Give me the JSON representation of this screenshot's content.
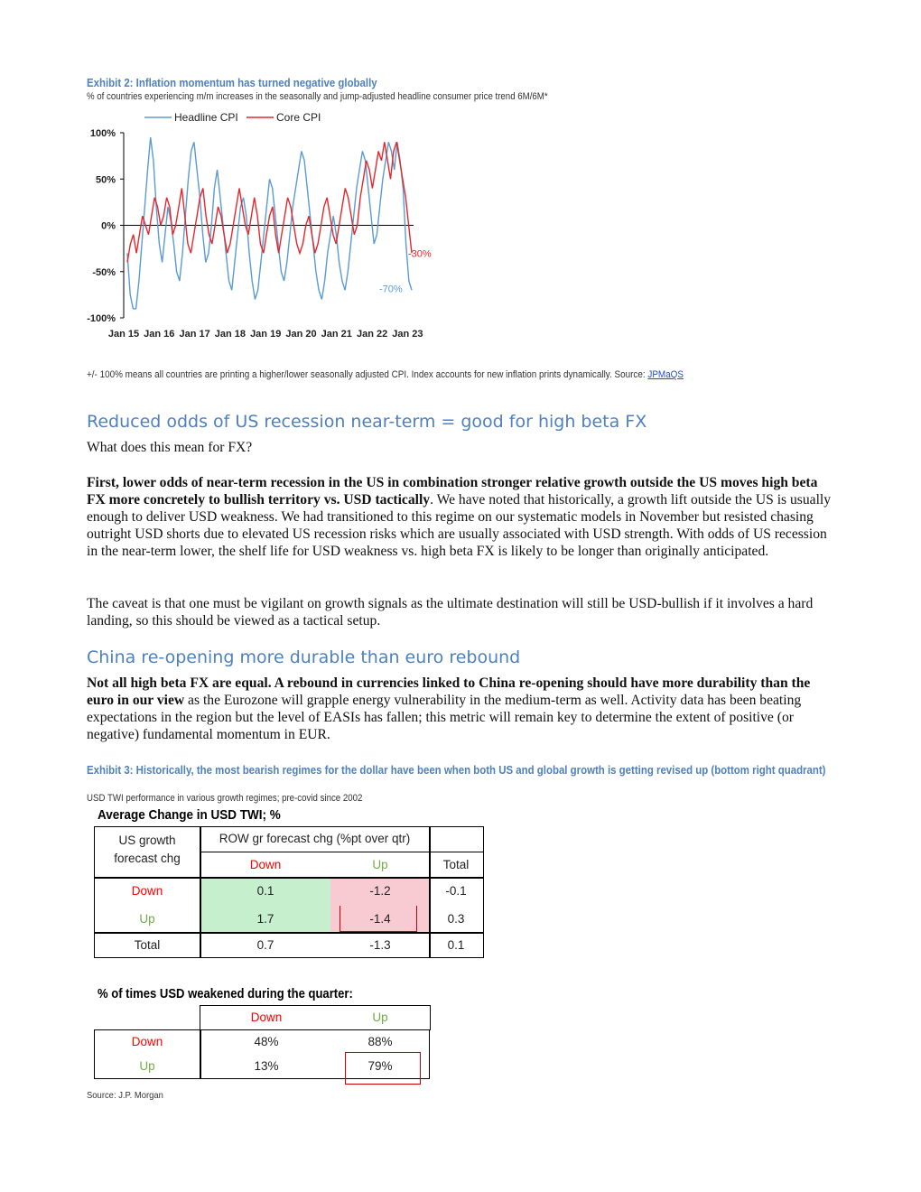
{
  "exhibit2": {
    "title": "Exhibit 2: Inflation momentum has turned negative globally",
    "subtitle": "% of countries experiencing m/m increases in the seasonally and jump-adjusted headline consumer price trend 6M/6M*",
    "footnote": "+/- 100% means all countries are printing a higher/lower seasonally adjusted CPI. Index accounts for new inflation prints dynamically. Source: ",
    "source_link": "JPMaQS"
  },
  "chart_data": {
    "type": "line",
    "x_tick_labels": [
      "Jan 15",
      "Jan 16",
      "Jan 17",
      "Jan 18",
      "Jan 19",
      "Jan 20",
      "Jan 21",
      "Jan 22",
      "Jan 23"
    ],
    "y_tick_labels": [
      "100%",
      "50%",
      "0%",
      "-50%",
      "-100%"
    ],
    "ylim": [
      -100,
      100
    ],
    "legend_placement": "top",
    "series": [
      {
        "name": "Headline CPI",
        "color": "#5b9bd5",
        "values": [
          -30,
          -75,
          -90,
          -90,
          -60,
          -20,
          20,
          60,
          95,
          70,
          20,
          -20,
          -40,
          -10,
          20,
          5,
          -20,
          -50,
          -60,
          -30,
          10,
          50,
          80,
          90,
          60,
          30,
          -10,
          -40,
          -30,
          0,
          40,
          60,
          30,
          0,
          -30,
          -60,
          -70,
          -40,
          -10,
          20,
          30,
          10,
          -30,
          -60,
          -80,
          -70,
          -40,
          -10,
          20,
          50,
          40,
          10,
          -20,
          -50,
          -60,
          -40,
          -10,
          20,
          40,
          60,
          80,
          70,
          40,
          10,
          -20,
          -50,
          -70,
          -80,
          -60,
          -30,
          -10,
          10,
          -10,
          -40,
          -60,
          -70,
          -50,
          -20,
          10,
          40,
          60,
          80,
          70,
          40,
          10,
          -20,
          -10,
          20,
          50,
          70,
          90,
          80,
          60,
          90,
          70,
          40,
          -20,
          -60,
          -70
        ]
      },
      {
        "name": "Core CPI",
        "color": "#e3282d",
        "values": [
          -40,
          -20,
          -10,
          -30,
          -10,
          10,
          0,
          -10,
          10,
          30,
          20,
          0,
          10,
          30,
          20,
          -10,
          0,
          20,
          40,
          10,
          -20,
          -30,
          -10,
          10,
          30,
          40,
          10,
          -10,
          -20,
          0,
          20,
          10,
          -10,
          -30,
          -20,
          0,
          20,
          40,
          20,
          0,
          -10,
          10,
          30,
          10,
          -20,
          -30,
          -10,
          10,
          20,
          -10,
          -30,
          -10,
          10,
          30,
          20,
          0,
          -20,
          -30,
          -20,
          0,
          10,
          -10,
          -30,
          -20,
          0,
          20,
          30,
          10,
          -10,
          -20,
          0,
          20,
          40,
          30,
          10,
          -10,
          0,
          30,
          50,
          70,
          60,
          40,
          60,
          80,
          70,
          90,
          70,
          50,
          80,
          90,
          70,
          50,
          30,
          0,
          -30
        ]
      }
    ],
    "annotations": [
      "-30%",
      "-70%"
    ]
  },
  "section1": {
    "heading": "Reduced odds of US recession near-term = good for high beta FX",
    "intro": "What does this mean for FX?",
    "p1_bold": "First, lower odds of near-term recession in the US in combination stronger relative growth outside the US moves high beta FX more concretely to bullish territory vs. USD tactically",
    "p1_rest": ". We have noted that historically, a growth lift outside the US is usually enough to deliver USD weakness. We had transitioned to this regime on our systematic models in November but resisted chasing outright USD shorts due to elevated US recession risks which are usually associated with USD strength. With odds of US recession in the near-term lower, the shelf life for USD weakness vs. high beta FX is likely to be longer than originally anticipated.",
    "p2": "The caveat is that one must be vigilant on growth signals as the ultimate destination will still be USD-bullish if it involves a hard landing, so this should be viewed as a tactical setup."
  },
  "section2": {
    "heading": "China re-opening more durable than euro rebound",
    "p1_bold": "Not all high beta FX are equal. A rebound in currencies linked to China re-opening should have more durability than the euro in our view",
    "p1_rest": " as the Eurozone will grapple energy vulnerability in the medium-term as well. Activity data has been beating expectations in the region but the level of EASIs has fallen; this metric will remain key to determine the extent of positive (or negative) fundamental momentum in EUR."
  },
  "exhibit3": {
    "title": "Exhibit 3: Historically, the most bearish regimes for the dollar have been when both US and global growth is getting revised up (bottom right quadrant)",
    "subtitle": "USD TWI performance in various growth regimes; pre-covid since 2002",
    "table1": {
      "caption": "Average  Change in USD TWI; %",
      "row_header": "US growth forecast chg",
      "col_group": "ROW gr forecast chg (%pt over qtr)",
      "cols": [
        "Down",
        "Up",
        "Total"
      ],
      "rows": [
        {
          "label": "Down",
          "values": [
            "0.1",
            "-1.2",
            "-0.1"
          ]
        },
        {
          "label": "Up",
          "values": [
            "1.7",
            "-1.4",
            "0.3"
          ]
        },
        {
          "label": "Total",
          "values": [
            "0.7",
            "-1.3",
            "0.1"
          ]
        }
      ],
      "colors": {
        "green_fill": "#c6efce",
        "red_fill": "#f8cbd3",
        "red_text": "#ff0000",
        "green_text": "#70ad47"
      }
    },
    "table2": {
      "caption": "% of times USD weakened during the quarter:",
      "cols": [
        "Down",
        "Up"
      ],
      "rows": [
        {
          "label": "Down",
          "values": [
            "48%",
            "88%"
          ]
        },
        {
          "label": "Up",
          "values": [
            "13%",
            "79%"
          ]
        }
      ]
    },
    "source": "Source: J.P. Morgan"
  }
}
